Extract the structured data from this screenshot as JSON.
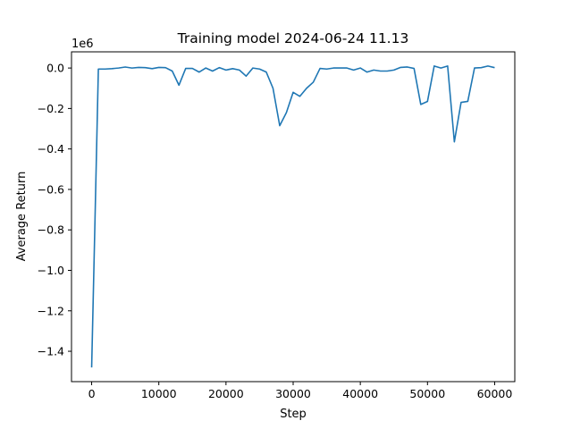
{
  "chart_data": {
    "type": "line",
    "title": "Training model 2024-06-24 11.13",
    "xlabel": "Step",
    "ylabel": "Average Return",
    "y_offset_label": "1e6",
    "xlim": [
      -3000,
      63000
    ],
    "ylim": [
      -1.55,
      0.08
    ],
    "x_ticks": [
      0,
      10000,
      20000,
      30000,
      40000,
      50000,
      60000
    ],
    "x_tick_labels": [
      "0",
      "10000",
      "20000",
      "30000",
      "40000",
      "50000",
      "60000"
    ],
    "y_ticks": [
      0.0,
      -0.2,
      -0.4,
      -0.6,
      -0.8,
      -1.0,
      -1.2,
      -1.4
    ],
    "y_tick_labels": [
      "0.0",
      "−0.2",
      "−0.4",
      "−0.6",
      "−0.8",
      "−1.0",
      "−1.2",
      "−1.4"
    ],
    "grid": false,
    "line_color": "#1f77b4",
    "series": [
      {
        "x": [
          0,
          500,
          1000,
          2000,
          3000,
          4000,
          5000,
          6000,
          7000,
          8000,
          9000,
          10000,
          11000,
          12000,
          13000,
          14000,
          15000,
          16000,
          17000,
          18000,
          19000,
          20000,
          21000,
          22000,
          23000,
          24000,
          25000,
          26000,
          27000,
          28000,
          29000,
          30000,
          31000,
          32000,
          33000,
          34000,
          35000,
          36000,
          37000,
          38000,
          39000,
          40000,
          41000,
          42000,
          43000,
          44000,
          45000,
          46000,
          47000,
          48000,
          49000,
          50000,
          51000,
          52000,
          53000,
          54000,
          55000,
          56000,
          57000,
          58000,
          59000,
          60000
        ],
        "y": [
          -1.48,
          -0.75,
          -0.005,
          -0.005,
          -0.003,
          0.0,
          0.005,
          0.0,
          0.003,
          0.002,
          -0.003,
          0.003,
          0.002,
          -0.015,
          -0.085,
          -0.002,
          -0.002,
          -0.02,
          0.0,
          -0.015,
          0.002,
          -0.01,
          -0.003,
          -0.01,
          -0.04,
          0.0,
          -0.005,
          -0.02,
          -0.1,
          -0.285,
          -0.22,
          -0.12,
          -0.14,
          -0.1,
          -0.07,
          -0.002,
          -0.005,
          0.0,
          0.0,
          0.0,
          -0.01,
          0.0,
          -0.02,
          -0.01,
          -0.015,
          -0.015,
          -0.01,
          0.003,
          0.005,
          -0.002,
          -0.18,
          -0.165,
          0.01,
          0.0,
          0.01,
          -0.365,
          -0.17,
          -0.165,
          0.0,
          0.002,
          0.01,
          0.002
        ]
      }
    ]
  }
}
